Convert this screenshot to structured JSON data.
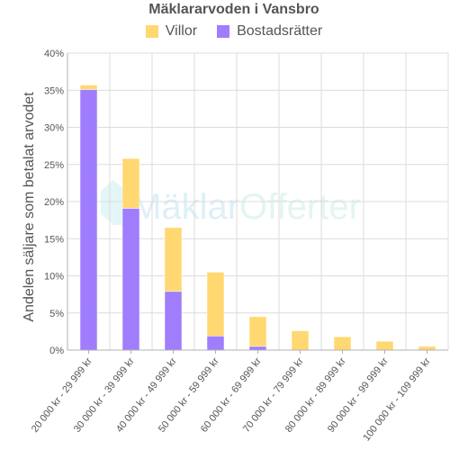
{
  "chart_data": {
    "type": "bar",
    "stacked": true,
    "title": "Mäklararvoden i Vansbro",
    "ylabel": "Andelen säljare som betalat arvodet",
    "xlabel": "",
    "ylim": [
      0,
      40
    ],
    "yticks": [
      "0%",
      "5%",
      "10%",
      "15%",
      "20%",
      "25%",
      "30%",
      "35%",
      "40%"
    ],
    "grid": true,
    "legend_position": "top",
    "categories": [
      "20 000 kr - 29 999 kr",
      "30 000 kr - 39 999 kr",
      "40 000 kr - 49 999 kr",
      "50 000 kr - 59 999 kr",
      "60 000 kr - 69 999 kr",
      "70 000 kr - 79 999 kr",
      "80 000 kr - 89 999 kr",
      "90 000 kr - 99 999 kr",
      "100 000 kr - 109 999 kr"
    ],
    "series": [
      {
        "name": "Bostadsrätter",
        "color": "#9f7dfc",
        "values": [
          35.1,
          19.1,
          7.9,
          1.9,
          0.5,
          0,
          0,
          0,
          0
        ]
      },
      {
        "name": "Villor",
        "color": "#ffd872",
        "values": [
          0.6,
          6.7,
          8.6,
          8.6,
          4.0,
          2.6,
          1.8,
          1.2,
          0.5
        ]
      }
    ]
  },
  "legend": [
    {
      "name": "Villor",
      "color": "#ffd872"
    },
    {
      "name": "Bostadsrätter",
      "color": "#9f7dfc"
    }
  ],
  "watermark": {
    "part1": "Mäklar",
    "part2": "Offerter"
  }
}
